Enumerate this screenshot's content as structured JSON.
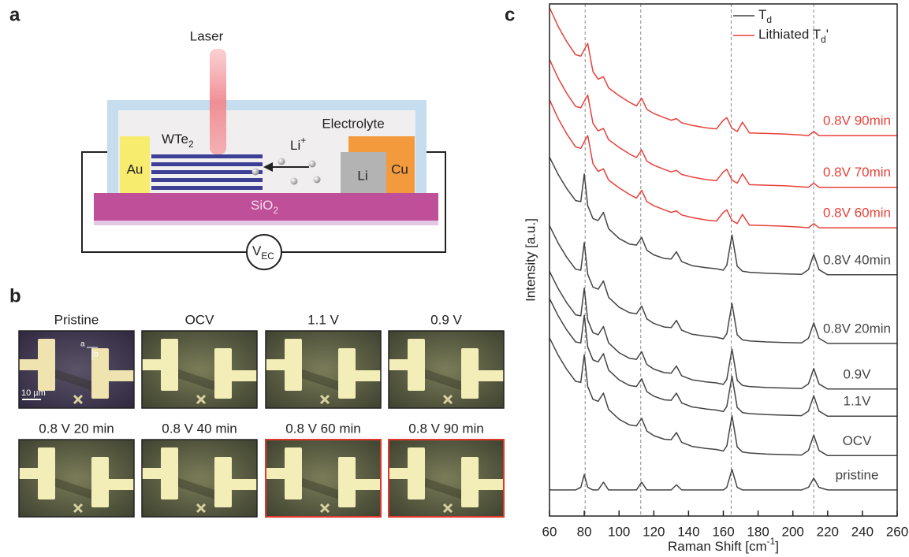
{
  "diagram": {
    "panel": "a",
    "laser": "Laser",
    "electrolyte": "Electrolyte",
    "flake": {
      "text": "WTe",
      "sub": "2"
    },
    "ion": {
      "text": "Li",
      "sup": "+"
    },
    "left_electrode": "Au",
    "anode": "Li",
    "right_electrode": "Cu",
    "substrate": {
      "text": "SiO",
      "sub": "2"
    },
    "source": {
      "text": "V",
      "sub": "EC"
    }
  },
  "micrographs": {
    "panel": "b",
    "scale_bar": "10 µm",
    "markers": [
      "a",
      "b"
    ],
    "tiles": [
      {
        "title": "Pristine",
        "highlight": false
      },
      {
        "title": "OCV",
        "highlight": false
      },
      {
        "title": "1.1 V",
        "highlight": false
      },
      {
        "title": "0.9 V",
        "highlight": false
      },
      {
        "title": "0.8 V 20 min",
        "highlight": false
      },
      {
        "title": "0.8 V 40 min",
        "highlight": false
      },
      {
        "title": "0.8 V 60 min",
        "highlight": true
      },
      {
        "title": "0.8 V 90 min",
        "highlight": true
      }
    ]
  },
  "chart_data": {
    "type": "line",
    "panel": "c",
    "xlabel": {
      "text": "Raman Shift [cm",
      "sup": "-1",
      "tail": "]"
    },
    "ylabel": "Intensity [a.u.]",
    "xlim": [
      60,
      260
    ],
    "xticks": [
      60,
      80,
      100,
      120,
      140,
      160,
      180,
      200,
      220,
      240,
      260
    ],
    "ylim": [
      0,
      100
    ],
    "vlines": [
      80.5,
      112.5,
      164.5,
      212
    ],
    "legend": [
      {
        "text": "T",
        "sub": "d",
        "color": "#444444"
      },
      {
        "text": "Lithiated T",
        "sub": "d",
        "tail": "'",
        "color": "#e8413a"
      }
    ],
    "x": [
      60,
      65,
      70,
      75,
      78,
      80,
      82,
      85,
      88,
      91,
      94,
      100,
      106,
      110,
      113,
      116,
      120,
      126,
      130,
      133,
      136,
      142,
      150,
      156,
      160,
      162,
      165,
      168,
      171,
      175,
      185,
      195,
      205,
      209,
      212,
      215,
      220,
      230,
      245,
      260
    ],
    "series": [
      {
        "name": "pristine",
        "color": "#444444",
        "values": [
          5.1,
          5.1,
          5.1,
          5.1,
          5.6,
          8.1,
          5.6,
          5.1,
          5.1,
          6.6,
          5.1,
          5.1,
          5.1,
          5.1,
          6.6,
          5.1,
          5.1,
          5.1,
          5.1,
          6.1,
          5.1,
          5.1,
          5.1,
          5.1,
          5.1,
          5.6,
          9.1,
          5.6,
          5.1,
          5.1,
          5.1,
          5.1,
          5.1,
          5.6,
          7.4,
          5.6,
          5.1,
          5.1,
          5.1,
          5.1
        ]
      },
      {
        "name": "OCV",
        "color": "#444444",
        "values": [
          34.8,
          31.4,
          28.6,
          26.3,
          26.1,
          31.5,
          25.3,
          22.8,
          22.4,
          24.0,
          20.8,
          18.9,
          17.8,
          17.6,
          19.1,
          16.6,
          15.7,
          15.0,
          14.9,
          16.3,
          14.4,
          13.6,
          13.2,
          13.0,
          12.7,
          13.7,
          19.6,
          13.5,
          12.5,
          12.3,
          12.1,
          12.0,
          11.9,
          12.8,
          15.8,
          12.8,
          11.8,
          11.8,
          11.8,
          11.8
        ]
      },
      {
        "name": "1.1V",
        "color": "#444444",
        "values": [
          42.5,
          39.1,
          36.3,
          34.0,
          33.8,
          39.2,
          33.0,
          30.5,
          30.1,
          31.7,
          28.5,
          26.6,
          25.5,
          25.3,
          26.8,
          24.3,
          23.4,
          22.7,
          22.6,
          24.0,
          22.1,
          21.3,
          20.9,
          20.7,
          20.4,
          21.4,
          27.3,
          21.2,
          20.2,
          20.0,
          19.8,
          19.7,
          19.6,
          20.5,
          23.5,
          20.5,
          19.5,
          19.5,
          19.5,
          19.5
        ]
      },
      {
        "name": "0.9V",
        "color": "#444444",
        "values": [
          47.8,
          44.4,
          41.6,
          39.3,
          39.1,
          44.5,
          38.3,
          35.8,
          35.4,
          37.0,
          33.8,
          31.9,
          30.8,
          30.6,
          32.1,
          29.6,
          28.7,
          28.0,
          27.9,
          29.3,
          27.4,
          26.6,
          26.2,
          26.0,
          25.7,
          26.7,
          32.6,
          26.5,
          25.5,
          25.3,
          25.1,
          25.0,
          24.9,
          25.8,
          28.8,
          25.8,
          24.8,
          24.8,
          24.8,
          24.8
        ]
      },
      {
        "name": "0.8V 20min",
        "color": "#444444",
        "values": [
          56.7,
          53.3,
          50.5,
          48.2,
          48.0,
          53.4,
          47.2,
          44.7,
          44.3,
          45.9,
          42.7,
          40.8,
          39.7,
          39.5,
          41.0,
          38.5,
          37.6,
          36.9,
          36.8,
          38.2,
          36.3,
          35.5,
          35.1,
          34.9,
          34.6,
          35.6,
          41.5,
          35.4,
          34.4,
          34.2,
          34.0,
          33.9,
          33.8,
          34.7,
          37.7,
          34.7,
          33.7,
          33.7,
          33.7,
          33.7
        ]
      },
      {
        "name": "0.8V 40min",
        "color": "#444444",
        "values": [
          70.1,
          66.7,
          63.9,
          61.6,
          61.4,
          66.8,
          60.6,
          58.1,
          57.7,
          59.3,
          56.1,
          54.2,
          53.1,
          52.9,
          54.4,
          51.9,
          51.0,
          50.3,
          50.2,
          51.6,
          49.7,
          48.9,
          48.5,
          48.3,
          48.0,
          49.0,
          54.9,
          48.8,
          47.8,
          47.6,
          47.4,
          47.3,
          47.2,
          48.1,
          51.1,
          48.1,
          47.1,
          47.1,
          47.1,
          47.1
        ]
      },
      {
        "name": "0.8V 60min",
        "color": "#e8413a",
        "values": [
          81.3,
          77.6,
          74.6,
          72.1,
          71.8,
          73.1,
          74.3,
          68.8,
          67.3,
          67.8,
          65.6,
          64.1,
          62.8,
          62.1,
          63.6,
          61.4,
          60.6,
          59.8,
          59.3,
          59.6,
          58.8,
          58.3,
          57.8,
          57.6,
          59.3,
          59.8,
          57.7,
          57.1,
          58.9,
          56.8,
          56.7,
          56.6,
          56.4,
          56.3,
          57.1,
          56.3,
          56.3,
          56.3,
          56.3,
          56.3
        ]
      },
      {
        "name": "0.8V 70min",
        "color": "#e8413a",
        "values": [
          89.2,
          85.5,
          82.5,
          80.0,
          79.7,
          81.0,
          82.2,
          76.7,
          75.2,
          75.7,
          73.5,
          72.0,
          70.7,
          70.0,
          71.5,
          69.3,
          68.5,
          67.7,
          67.2,
          67.5,
          66.7,
          66.2,
          65.7,
          65.5,
          67.2,
          67.7,
          65.6,
          65.0,
          66.8,
          64.7,
          64.6,
          64.5,
          64.3,
          64.2,
          65.0,
          64.2,
          64.2,
          64.2,
          64.2,
          64.2
        ]
      },
      {
        "name": "0.8V 90min",
        "color": "#e8413a",
        "values": [
          99.3,
          95.6,
          92.6,
          90.1,
          89.8,
          91.1,
          92.3,
          86.8,
          85.3,
          85.8,
          83.6,
          82.1,
          80.8,
          80.1,
          81.6,
          79.4,
          78.6,
          77.8,
          77.3,
          77.6,
          76.8,
          76.3,
          75.8,
          75.6,
          77.3,
          77.8,
          75.7,
          75.1,
          76.9,
          74.8,
          74.7,
          74.6,
          74.4,
          74.3,
          75.1,
          74.3,
          74.3,
          74.3,
          74.3,
          74.3
        ]
      }
    ]
  }
}
